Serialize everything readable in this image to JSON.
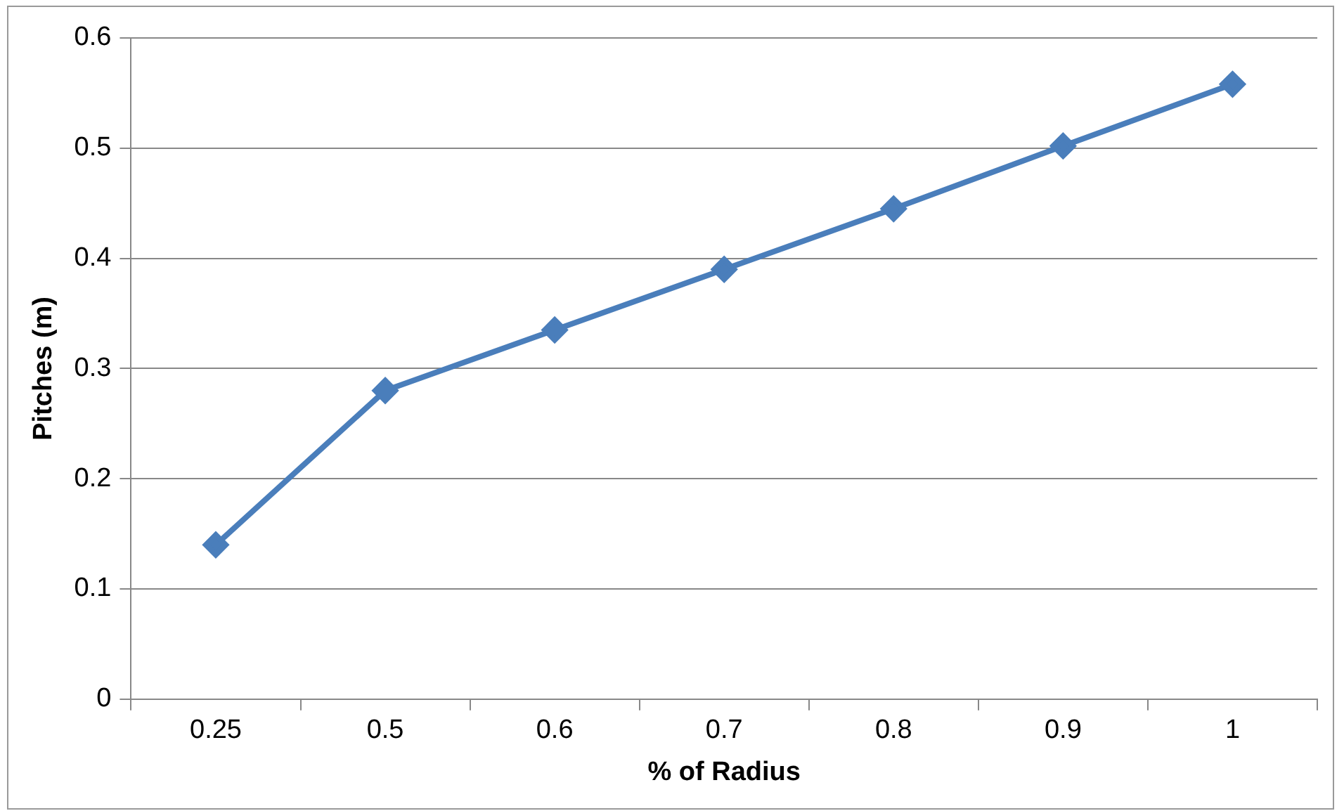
{
  "chart_data": {
    "type": "line",
    "xlabel": "% of Radius",
    "ylabel": "Pitches (m)",
    "categories": [
      "0.25",
      "0.5",
      "0.6",
      "0.7",
      "0.8",
      "0.9",
      "1"
    ],
    "series": [
      {
        "color": "#4a7ebb",
        "values": [
          0.14,
          0.28,
          0.335,
          0.39,
          0.445,
          0.502,
          0.558
        ]
      }
    ],
    "ylim": [
      0,
      0.6
    ],
    "yticks": [
      0,
      0.1,
      0.2,
      0.3,
      0.4,
      0.5,
      0.6
    ],
    "grid": "y",
    "legend": false,
    "marker": "diamond",
    "line_style": "solid"
  }
}
